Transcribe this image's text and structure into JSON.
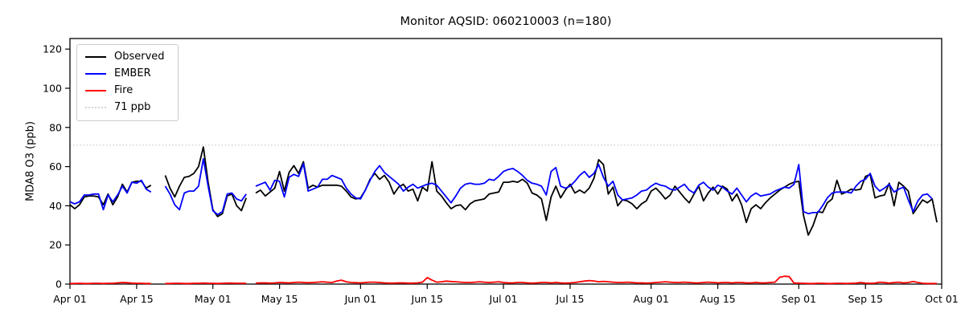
{
  "title": "Monitor AQSID: 060210003 (n=180)",
  "ylabel": "MDA8 O3 (ppb)",
  "legend": {
    "items": [
      {
        "label": "Observed",
        "color": "#000000",
        "style": "solid"
      },
      {
        "label": "EMBER",
        "color": "#0000ff",
        "style": "solid"
      },
      {
        "label": "Fire",
        "color": "#ff0000",
        "style": "solid"
      },
      {
        "label": "71 ppb",
        "color": "#d3d3d3",
        "style": "dotted"
      }
    ]
  },
  "chart_data": {
    "type": "line",
    "title": "Monitor AQSID: 060210003 (n=180)",
    "xlabel": "",
    "ylabel": "MDA8 O3 (ppb)",
    "x_start": "Apr 01",
    "x_end": "Oct 01",
    "frequency": "daily",
    "x_axis_span_days": 183,
    "y_ticks": [
      0,
      20,
      40,
      60,
      80,
      100,
      120
    ],
    "ylim": [
      0,
      125
    ],
    "y_plot_top": 125.4,
    "grid": false,
    "legend_position": "upper left",
    "x_tick_days": [
      0,
      14,
      30,
      44,
      61,
      75,
      91,
      105,
      122,
      136,
      153,
      167,
      183
    ],
    "x_tick_labels": [
      "Apr 01",
      "Apr 15",
      "May 01",
      "May 15",
      "Jun 01",
      "Jun 15",
      "Jul 01",
      "Jul 15",
      "Aug 01",
      "Aug 15",
      "Sep 01",
      "Sep 15",
      "Oct 01"
    ],
    "n_points": 180,
    "missing_day_indices": [
      18,
      19,
      38
    ],
    "threshold": {
      "value": 71,
      "label": "71 ppb",
      "color": "#d3d3d3"
    },
    "series": [
      {
        "name": "Observed",
        "color": "#000000",
        "values": [
          40.5,
          38.5,
          40.5,
          44.5,
          45,
          45,
          44.5,
          40.5,
          46,
          40.5,
          44.5,
          51,
          47,
          52,
          52.5,
          52.5,
          49,
          50.5,
          null,
          null,
          55.5,
          49,
          44.5,
          50,
          54.5,
          55,
          56.5,
          60,
          70,
          52,
          38,
          34.5,
          36,
          45,
          46,
          40,
          37.5,
          44,
          null,
          46.5,
          48,
          45,
          47,
          49,
          57.5,
          47.5,
          57,
          60.5,
          56.5,
          62.5,
          49,
          50.5,
          49.5,
          50.5,
          50.5,
          50.5,
          50.5,
          50,
          47.5,
          44.5,
          43.5,
          44,
          48,
          53.5,
          56.5,
          53.5,
          55.5,
          52,
          46,
          49.5,
          51,
          47.5,
          48.5,
          42.5,
          49.5,
          47.5,
          62.5,
          47.5,
          45,
          41.5,
          38.5,
          40,
          40.5,
          38,
          41,
          42.5,
          43,
          43.5,
          46,
          46.5,
          47,
          52,
          52,
          52.5,
          52,
          53.5,
          51.5,
          46.5,
          45.5,
          43.5,
          32.5,
          44.5,
          50,
          44,
          48,
          51,
          46.5,
          48,
          46.5,
          49,
          54,
          63.5,
          61,
          46,
          49.5,
          40,
          43,
          42.5,
          41,
          38.5,
          41,
          42.5,
          47.5,
          49,
          46.5,
          43.5,
          45.5,
          50,
          47,
          44,
          41.5,
          46,
          50,
          42.5,
          46.5,
          49.5,
          46,
          50,
          48.5,
          42.5,
          46,
          40.5,
          31.5,
          38.5,
          40.5,
          38.5,
          41.5,
          44,
          46,
          48,
          49.5,
          51,
          52,
          52.5,
          35,
          25,
          30,
          37,
          36.5,
          41.5,
          43.5,
          53,
          46,
          47,
          48.5,
          48,
          48.5,
          55,
          56,
          44,
          45,
          45.5,
          51.5,
          40,
          52,
          50,
          47.5,
          36,
          39.5,
          43,
          41.5,
          43.5,
          31.5
        ]
      },
      {
        "name": "EMBER",
        "color": "#0000ff",
        "values": [
          42,
          41,
          42,
          45.5,
          45.5,
          46,
          46,
          38,
          45.5,
          42,
          45.5,
          50,
          46.5,
          52,
          51.5,
          53,
          48.5,
          47,
          null,
          null,
          50,
          46,
          40.5,
          38,
          46.5,
          47.5,
          47.5,
          50,
          64,
          50,
          37.5,
          35.5,
          37,
          46,
          46.5,
          43.5,
          42.5,
          46,
          null,
          50,
          51,
          52,
          48,
          53,
          52.5,
          44.5,
          54.5,
          56,
          55,
          61.5,
          47.5,
          48.5,
          49.5,
          53.5,
          53.5,
          55.5,
          54.5,
          53.5,
          49,
          46,
          44,
          43.5,
          48,
          53,
          57.5,
          60.5,
          57,
          55,
          53,
          51,
          47.5,
          49.5,
          51,
          49,
          50,
          51,
          51.5,
          50.5,
          47.5,
          44.5,
          41.5,
          45,
          49,
          51,
          51.5,
          51,
          51,
          51.5,
          53.5,
          53,
          55,
          57.5,
          58.5,
          59,
          57.5,
          55.5,
          53,
          51.5,
          51,
          50,
          45.5,
          57.5,
          59.5,
          50,
          49,
          50,
          52.5,
          55.5,
          57.5,
          54.5,
          56.5,
          61,
          54.5,
          50,
          52.5,
          45.5,
          43,
          43.5,
          44,
          45.5,
          47.5,
          48,
          50,
          51.5,
          50.5,
          50,
          48.5,
          48,
          49.5,
          51,
          48,
          46.5,
          50.5,
          52,
          49.5,
          48,
          50.5,
          49.5,
          47.5,
          46,
          49,
          45.5,
          42,
          45,
          46.5,
          45,
          45.5,
          46,
          47.5,
          48.5,
          49.5,
          49,
          51,
          61,
          37,
          36,
          36.5,
          36.5,
          40,
          44,
          46.5,
          47,
          47,
          47,
          46.5,
          50,
          52.5,
          53.5,
          56.5,
          50,
          47.5,
          49,
          51,
          47,
          48.5,
          49.5,
          43,
          37,
          42.5,
          45.5,
          46,
          43.5,
          null
        ]
      },
      {
        "name": "Fire",
        "color": "#ff0000",
        "values": [
          0.3,
          0.3,
          0.4,
          0.3,
          0.3,
          0.4,
          0.4,
          0.3,
          0.4,
          0.4,
          0.6,
          0.8,
          0.7,
          0.5,
          0.4,
          0.4,
          0.3,
          0.3,
          null,
          null,
          0.3,
          0.3,
          0.4,
          0.4,
          0.3,
          0.3,
          0.4,
          0.4,
          0.5,
          0.4,
          0.4,
          0.3,
          0.4,
          0.5,
          0.5,
          0.4,
          0.4,
          0.4,
          null,
          0.5,
          0.6,
          0.6,
          0.5,
          0.6,
          0.8,
          0.7,
          0.6,
          0.8,
          1,
          0.8,
          0.7,
          0.8,
          1,
          1.2,
          1,
          0.8,
          1.5,
          2,
          1.2,
          0.8,
          0.7,
          0.6,
          0.8,
          1,
          1,
          0.8,
          0.6,
          0.5,
          0.5,
          0.6,
          0.6,
          0.5,
          0.5,
          0.6,
          1,
          3.3,
          2,
          1,
          1.2,
          1.5,
          1.3,
          1.2,
          1,
          0.8,
          0.8,
          1,
          1.2,
          1,
          0.8,
          1,
          1.2,
          0.8,
          0.6,
          0.6,
          0.8,
          0.8,
          0.6,
          0.5,
          0.6,
          0.8,
          0.8,
          0.6,
          0.8,
          0.6,
          0.5,
          0.6,
          0.8,
          1.2,
          1.5,
          1.8,
          1.6,
          1.2,
          1.4,
          1.2,
          1,
          0.8,
          0.8,
          1,
          0.8,
          0.6,
          0.6,
          0.5,
          0.6,
          0.8,
          1,
          1.2,
          1,
          0.8,
          0.8,
          1,
          0.8,
          0.6,
          0.6,
          0.8,
          1,
          0.8,
          0.6,
          0.8,
          0.8,
          0.6,
          0.8,
          0.8,
          0.6,
          0.6,
          0.8,
          0.6,
          0.6,
          0.8,
          1,
          3.5,
          4,
          3.8,
          0.5,
          0.5,
          0.4,
          0.3,
          0.3,
          0.4,
          0.4,
          0.3,
          0.3,
          0.4,
          0.4,
          0.3,
          0.4,
          0.5,
          0.8,
          0.5,
          0.4,
          0.5,
          1,
          0.8,
          0.5,
          0.8,
          1,
          0.6,
          0.8,
          1.3,
          0.8,
          0.4,
          0.3,
          0.3,
          0.3
        ]
      }
    ]
  }
}
